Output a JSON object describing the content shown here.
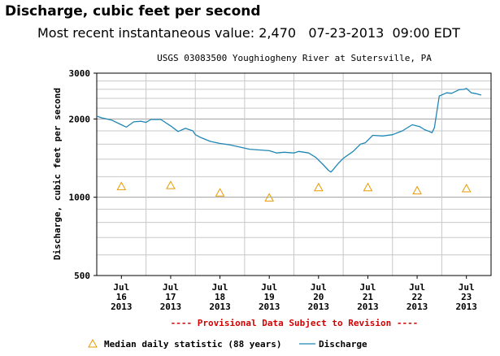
{
  "header": {
    "title": "Discharge, cubic feet per second",
    "recent_label": "Most recent instantaneous value:",
    "recent_value": "2,470",
    "recent_date": "07-23-2013",
    "recent_time": "09:00 EDT"
  },
  "chart_data": {
    "type": "line",
    "title": "USGS 03083500 Youghiogheny River at Sutersville, PA",
    "xlabel": "",
    "ylabel": "Discharge, cubic feet per second",
    "yscale": "log",
    "ylim": [
      500,
      3000
    ],
    "xlim": [
      0,
      8
    ],
    "y_ticks": [
      {
        "value": 3000,
        "label": "3000"
      },
      {
        "value": 2000,
        "label": "2000"
      },
      {
        "value": 1000,
        "label": "1000"
      },
      {
        "value": 500,
        "label": "500"
      }
    ],
    "y_minor_gridlines": [
      600,
      700,
      800,
      900,
      1200,
      1400,
      1600,
      1800,
      2200,
      2400,
      2600,
      2800
    ],
    "x_ticks": [
      {
        "value": 0.5,
        "month": "Jul",
        "day": "16",
        "year": "2013"
      },
      {
        "value": 1.5,
        "month": "Jul",
        "day": "17",
        "year": "2013"
      },
      {
        "value": 2.5,
        "month": "Jul",
        "day": "18",
        "year": "2013"
      },
      {
        "value": 3.5,
        "month": "Jul",
        "day": "19",
        "year": "2013"
      },
      {
        "value": 4.5,
        "month": "Jul",
        "day": "20",
        "year": "2013"
      },
      {
        "value": 5.5,
        "month": "Jul",
        "day": "21",
        "year": "2013"
      },
      {
        "value": 6.5,
        "month": "Jul",
        "day": "22",
        "year": "2013"
      },
      {
        "value": 7.5,
        "month": "Jul",
        "day": "23",
        "year": "2013"
      }
    ],
    "grid": true,
    "legend_position": "bottom",
    "annotation": "---- Provisional Data Subject to Revision ----",
    "series": [
      {
        "name": "Discharge",
        "color": "#1f86b5",
        "style": "line",
        "x": [
          0.0,
          0.1,
          0.3,
          0.5,
          0.6,
          0.75,
          0.9,
          1.0,
          1.1,
          1.3,
          1.5,
          1.65,
          1.8,
          1.95,
          2.0,
          2.1,
          2.3,
          2.5,
          2.7,
          2.9,
          3.1,
          3.3,
          3.5,
          3.65,
          3.8,
          4.0,
          4.1,
          4.3,
          4.45,
          4.6,
          4.7,
          4.75,
          4.8,
          4.9,
          5.0,
          5.2,
          5.35,
          5.45,
          5.6,
          5.8,
          6.0,
          6.2,
          6.4,
          6.55,
          6.65,
          6.75,
          6.8,
          6.85,
          6.95,
          7.1,
          7.2,
          7.35,
          7.45,
          7.5,
          7.55,
          7.6,
          7.7,
          7.8
        ],
        "values": [
          2050,
          2020,
          1980,
          1900,
          1860,
          1950,
          1960,
          1940,
          1990,
          1990,
          1880,
          1790,
          1840,
          1800,
          1740,
          1700,
          1640,
          1610,
          1590,
          1560,
          1530,
          1520,
          1510,
          1480,
          1490,
          1480,
          1500,
          1480,
          1420,
          1330,
          1270,
          1250,
          1280,
          1350,
          1410,
          1500,
          1600,
          1620,
          1730,
          1720,
          1740,
          1800,
          1900,
          1870,
          1820,
          1790,
          1770,
          1850,
          2450,
          2520,
          2510,
          2590,
          2600,
          2620,
          2570,
          2520,
          2500,
          2470
        ]
      },
      {
        "name": "Median daily statistic (88 years)",
        "color": "#e89a00",
        "style": "triangle",
        "x": [
          0.5,
          1.5,
          2.5,
          3.5,
          4.5,
          5.5,
          6.5,
          7.5
        ],
        "values": [
          1100,
          1110,
          1040,
          995,
          1090,
          1090,
          1060,
          1080
        ]
      }
    ]
  },
  "legend": {
    "median_label": "Median daily statistic (88 years)",
    "discharge_label": "Discharge"
  }
}
